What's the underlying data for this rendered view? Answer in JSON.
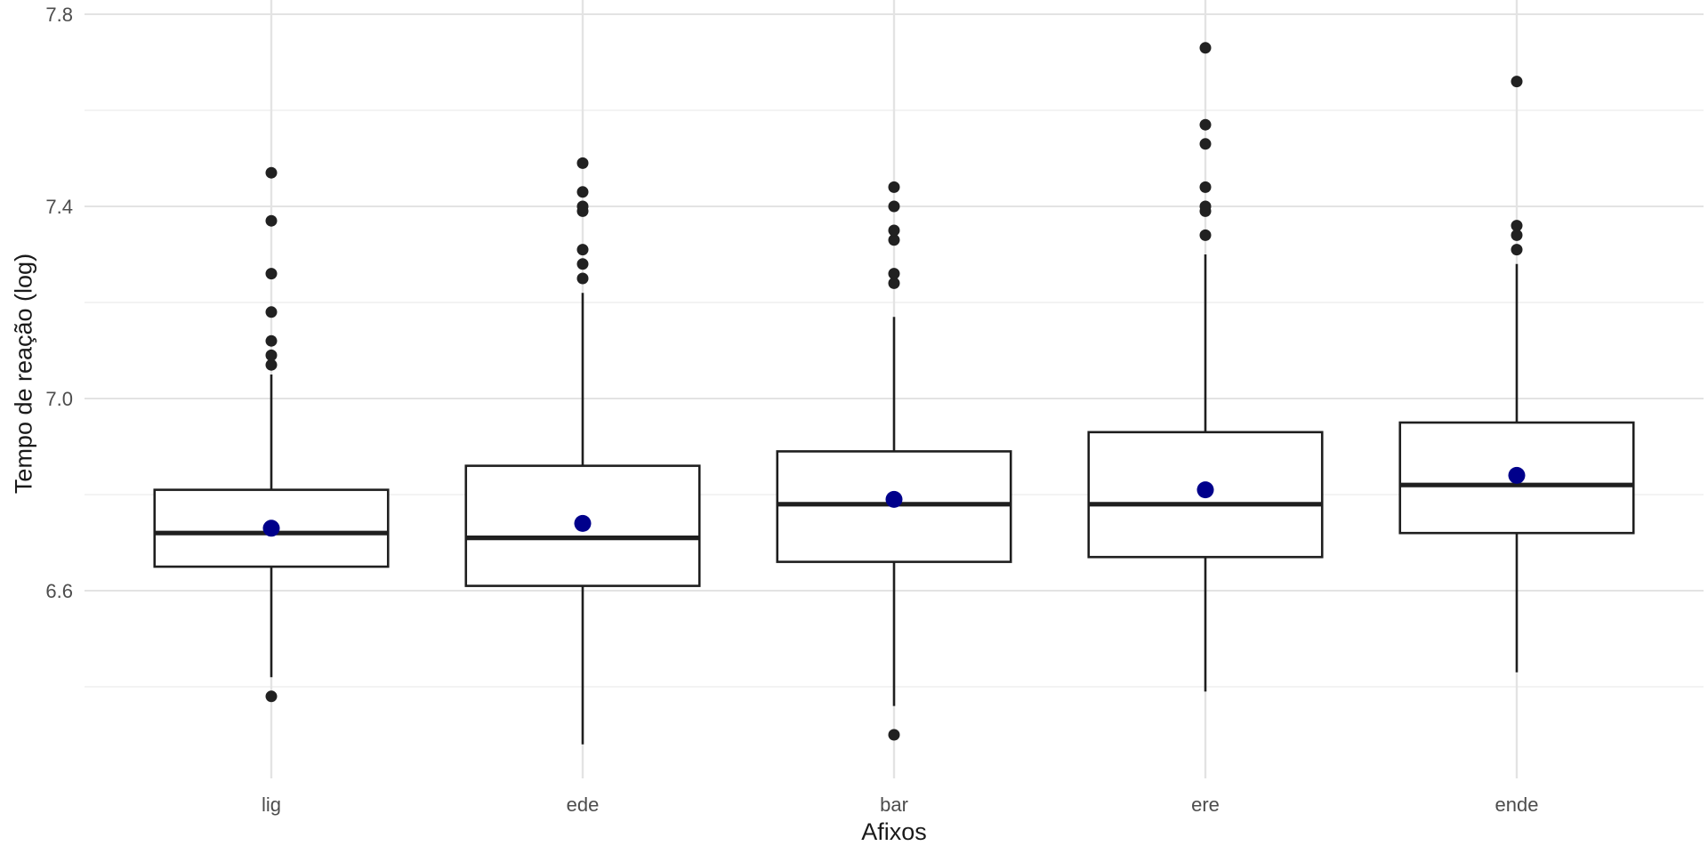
{
  "chart_data": {
    "type": "boxplot",
    "title": "",
    "xlabel": "Afixos",
    "ylabel": "Tempo de reação (log)",
    "categories": [
      "lig",
      "ede",
      "bar",
      "ere",
      "ende"
    ],
    "y_ticks": [
      6.6,
      7.0,
      7.4,
      7.8
    ],
    "y_tick_labels": [
      "6.6",
      "7.0",
      "7.4",
      "7.8"
    ],
    "y_minor_ticks": [
      6.4,
      6.8,
      7.2,
      7.6
    ],
    "ylim": [
      6.2,
      7.83
    ],
    "grid": "on",
    "legend": "none",
    "series": [
      {
        "category": "lig",
        "whisker_low": 6.42,
        "q1": 6.65,
        "median": 6.72,
        "q3": 6.81,
        "whisker_high": 7.05,
        "mean": 6.73,
        "outliers_high": [
          7.07,
          7.09,
          7.12,
          7.18,
          7.26,
          7.37,
          7.47
        ],
        "outliers_low": [
          6.38
        ]
      },
      {
        "category": "ede",
        "whisker_low": 6.28,
        "q1": 6.61,
        "median": 6.71,
        "q3": 6.86,
        "whisker_high": 7.22,
        "mean": 6.74,
        "outliers_high": [
          7.25,
          7.28,
          7.31,
          7.39,
          7.4,
          7.43,
          7.49
        ],
        "outliers_low": []
      },
      {
        "category": "bar",
        "whisker_low": 6.36,
        "q1": 6.66,
        "median": 6.78,
        "q3": 6.89,
        "whisker_high": 7.17,
        "mean": 6.79,
        "outliers_high": [
          7.24,
          7.26,
          7.33,
          7.35,
          7.4,
          7.44
        ],
        "outliers_low": [
          6.3
        ]
      },
      {
        "category": "ere",
        "whisker_low": 6.39,
        "q1": 6.67,
        "median": 6.78,
        "q3": 6.93,
        "whisker_high": 7.3,
        "mean": 6.81,
        "outliers_high": [
          7.34,
          7.39,
          7.4,
          7.44,
          7.53,
          7.57,
          7.73
        ],
        "outliers_low": []
      },
      {
        "category": "ende",
        "whisker_low": 6.43,
        "q1": 6.72,
        "median": 6.82,
        "q3": 6.95,
        "whisker_high": 7.28,
        "mean": 6.84,
        "outliers_high": [
          7.31,
          7.34,
          7.36,
          7.66
        ],
        "outliers_low": []
      }
    ],
    "colors": {
      "background": "#ffffff",
      "box_fill": "#ffffff",
      "box_stroke": "#1f1f1f",
      "outlier_point": "#212121",
      "mean_point": "#00008B",
      "grid_major": "#e3e3e3",
      "grid_minor": "#efefef",
      "tick_label": "#4d4d4d",
      "axis_title": "#1a1a1a"
    }
  }
}
